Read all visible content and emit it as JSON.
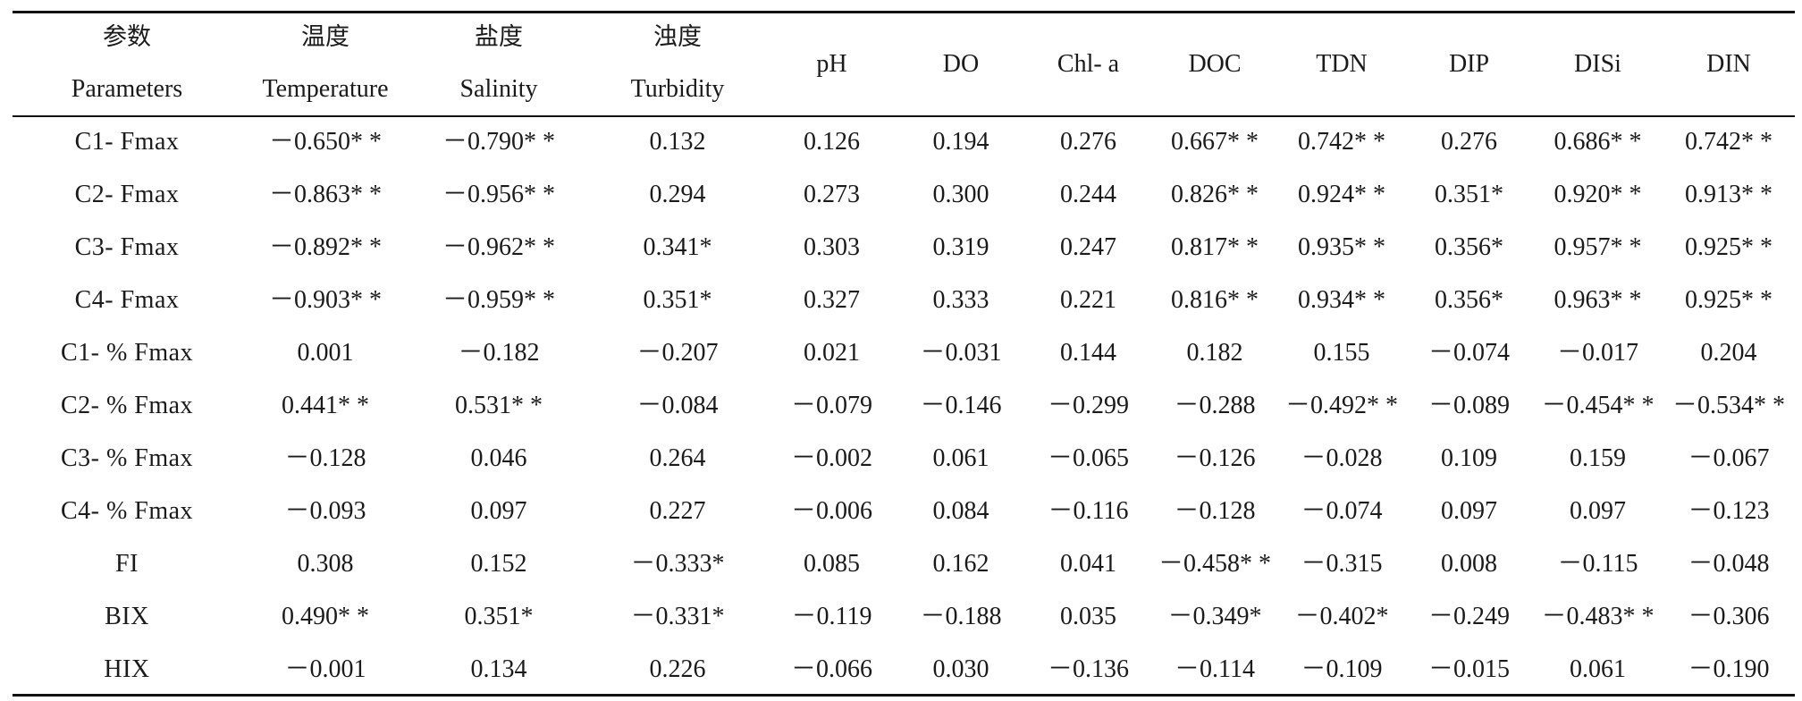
{
  "table": {
    "columns": [
      {
        "zh": "参数",
        "en": "Parameters"
      },
      {
        "zh": "温度",
        "en": "Temperature"
      },
      {
        "zh": "盐度",
        "en": "Salinity"
      },
      {
        "zh": "浊度",
        "en": "Turbidity"
      },
      {
        "zh": "",
        "en": "pH"
      },
      {
        "zh": "",
        "en": "DO"
      },
      {
        "zh": "",
        "en": "Chl- a"
      },
      {
        "zh": "",
        "en": "DOC"
      },
      {
        "zh": "",
        "en": "TDN"
      },
      {
        "zh": "",
        "en": "DIP"
      },
      {
        "zh": "",
        "en": "DISi"
      },
      {
        "zh": "",
        "en": "DIN"
      }
    ],
    "rows": [
      {
        "param": "C1-   Fmax",
        "values": [
          "－0.650* *",
          "－0.790* *",
          "0.132",
          "0.126",
          "0.194",
          "0.276",
          "0.667* *",
          "0.742* *",
          "0.276",
          "0.686* *",
          "0.742* *"
        ]
      },
      {
        "param": "C2-   Fmax",
        "values": [
          "－0.863* *",
          "－0.956* *",
          "0.294",
          "0.273",
          "0.300",
          "0.244",
          "0.826* *",
          "0.924* *",
          "0.351*",
          "0.920* *",
          "0.913* *"
        ]
      },
      {
        "param": "C3-   Fmax",
        "values": [
          "－0.892* *",
          "－0.962* *",
          "0.341*",
          "0.303",
          "0.319",
          "0.247",
          "0.817* *",
          "0.935* *",
          "0.356*",
          "0.957* *",
          "0.925* *"
        ]
      },
      {
        "param": "C4-   Fmax",
        "values": [
          "－0.903* *",
          "－0.959* *",
          "0.351*",
          "0.327",
          "0.333",
          "0.221",
          "0.816* *",
          "0.934* *",
          "0.356*",
          "0.963* *",
          "0.925* *"
        ]
      },
      {
        "param": "C1-   % Fmax",
        "values": [
          "0.001",
          "－0.182",
          "－0.207",
          "0.021",
          "－0.031",
          "0.144",
          "0.182",
          "0.155",
          "－0.074",
          "－0.017",
          "0.204"
        ]
      },
      {
        "param": "C2-   % Fmax",
        "values": [
          "0.441* *",
          "0.531* *",
          "－0.084",
          "－0.079",
          "－0.146",
          "－0.299",
          "－0.288",
          "－0.492* *",
          "－0.089",
          "－0.454* *",
          "－0.534* *"
        ]
      },
      {
        "param": "C3-   % Fmax",
        "values": [
          "－0.128",
          "0.046",
          "0.264",
          "－0.002",
          "0.061",
          "－0.065",
          "－0.126",
          "－0.028",
          "0.109",
          "0.159",
          "－0.067"
        ]
      },
      {
        "param": "C4-   % Fmax",
        "values": [
          "－0.093",
          "0.097",
          "0.227",
          "－0.006",
          "0.084",
          "－0.116",
          "－0.128",
          "－0.074",
          "0.097",
          "0.097",
          "－0.123"
        ]
      },
      {
        "param": "FI",
        "values": [
          "0.308",
          "0.152",
          "－0.333*",
          "0.085",
          "0.162",
          "0.041",
          "－0.458* *",
          "－0.315",
          "0.008",
          "－0.115",
          "－0.048"
        ]
      },
      {
        "param": "BIX",
        "values": [
          "0.490* *",
          "0.351*",
          "－0.331*",
          "－0.119",
          "－0.188",
          "0.035",
          "－0.349*",
          "－0.402*",
          "－0.249",
          "－0.483* *",
          "－0.306"
        ]
      },
      {
        "param": "HIX",
        "values": [
          "－0.001",
          "0.134",
          "0.226",
          "－0.066",
          "0.030",
          "－0.136",
          "－0.114",
          "－0.109",
          "－0.015",
          "0.061",
          "－0.190"
        ]
      }
    ]
  }
}
